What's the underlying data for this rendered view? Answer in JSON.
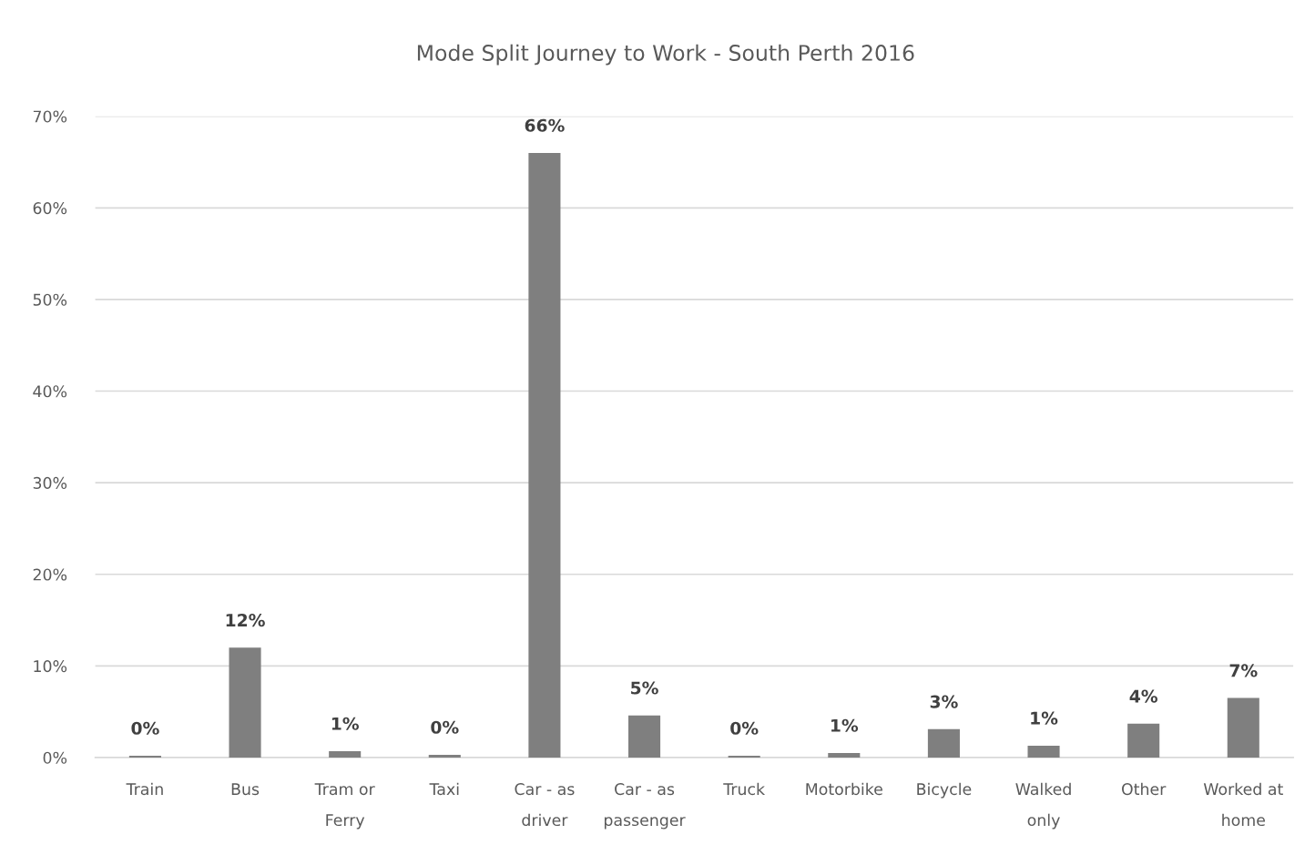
{
  "chart_data": {
    "type": "bar",
    "title": "Mode Split Journey to Work - South Perth 2016",
    "categories": [
      "Train",
      "Bus",
      "Tram or\nFerry",
      "Taxi",
      "Car - as\ndriver",
      "Car - as\npassenger",
      "Truck",
      "Motorbike",
      "Bicycle",
      "Walked\nonly",
      "Other",
      "Worked at\nhome"
    ],
    "values": [
      0.2,
      12,
      0.7,
      0.3,
      66,
      4.6,
      0.2,
      0.5,
      3.1,
      1.3,
      3.7,
      6.5
    ],
    "value_labels": [
      "0%",
      "12%",
      "1%",
      "0%",
      "66%",
      "5%",
      "0%",
      "1%",
      "3%",
      "1%",
      "4%",
      "7%"
    ],
    "color": "#7f7f7f",
    "ylim": [
      0,
      70
    ],
    "yticks": [
      {
        "value": 0,
        "label": "0%"
      },
      {
        "value": 10,
        "label": "10%"
      },
      {
        "value": 20,
        "label": "20%"
      },
      {
        "value": 30,
        "label": "30%"
      },
      {
        "value": 40,
        "label": "40%"
      },
      {
        "value": 50,
        "label": "50%"
      },
      {
        "value": 60,
        "label": "60%"
      },
      {
        "value": 70,
        "label": "70%"
      }
    ],
    "grid": "y"
  }
}
